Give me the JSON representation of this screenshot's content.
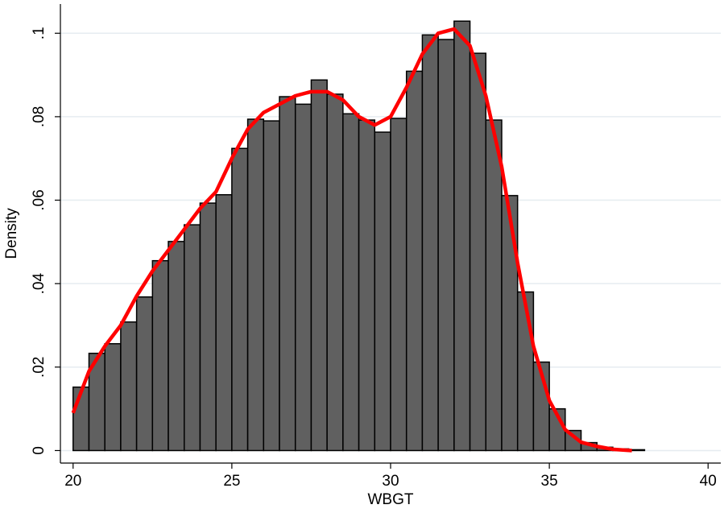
{
  "chart_data": {
    "type": "histogram",
    "x_label": "WBGT",
    "y_label": "Density",
    "bins": [
      20,
      20.5,
      21,
      21.5,
      22,
      22.5,
      23,
      23.5,
      24,
      24.5,
      25,
      25.5,
      26,
      26.5,
      27,
      27.5,
      28,
      28.5,
      29,
      29.5,
      30,
      30.5,
      31,
      31.5,
      32,
      32.5,
      33,
      33.5,
      34,
      34.5,
      35,
      35.5,
      36,
      36.5,
      37,
      37.5,
      38
    ],
    "values": [
      0.0152,
      0.0233,
      0.0256,
      0.0308,
      0.0368,
      0.0455,
      0.0501,
      0.0541,
      0.0593,
      0.0613,
      0.0724,
      0.0794,
      0.079,
      0.0848,
      0.083,
      0.0888,
      0.0854,
      0.0807,
      0.0792,
      0.0763,
      0.0796,
      0.0909,
      0.0996,
      0.0985,
      0.1029,
      0.0952,
      0.0792,
      0.0611,
      0.038,
      0.0212,
      0.01,
      0.0048,
      0.0019,
      0.0008,
      0.0004,
      0.0002
    ],
    "color": "#606060",
    "kde": {
      "color": "#ff0000",
      "x": [
        20,
        20.5,
        21,
        21.5,
        22,
        22.5,
        23,
        23.5,
        24,
        24.5,
        25,
        25.5,
        26,
        26.5,
        27,
        27.5,
        28,
        28.5,
        29,
        29.5,
        30,
        30.5,
        31,
        31.5,
        32,
        32.5,
        33,
        33.5,
        34,
        34.5,
        35,
        35.5,
        36,
        36.5,
        37,
        37.6
      ],
      "y": [
        0.009,
        0.019,
        0.025,
        0.03,
        0.037,
        0.043,
        0.048,
        0.053,
        0.058,
        0.062,
        0.07,
        0.077,
        0.081,
        0.083,
        0.085,
        0.086,
        0.086,
        0.084,
        0.08,
        0.078,
        0.08,
        0.087,
        0.095,
        0.1,
        0.101,
        0.097,
        0.085,
        0.068,
        0.045,
        0.025,
        0.012,
        0.005,
        0.002,
        0.001,
        0.0003,
        0
      ]
    },
    "xlim": [
      19.6,
      40.4
    ],
    "ylim": [
      -0.003,
      0.107
    ],
    "xticks": [
      20,
      25,
      30,
      35,
      40
    ],
    "yticks": [
      0,
      {
        "value": 0.02,
        "label": ".02"
      },
      {
        "value": 0.04,
        "label": ".04"
      },
      {
        "value": 0.06,
        "label": ".06"
      },
      {
        "value": 0.08,
        "label": ".08"
      },
      {
        "value": 0.1,
        "label": ".1"
      }
    ],
    "grid": true
  }
}
